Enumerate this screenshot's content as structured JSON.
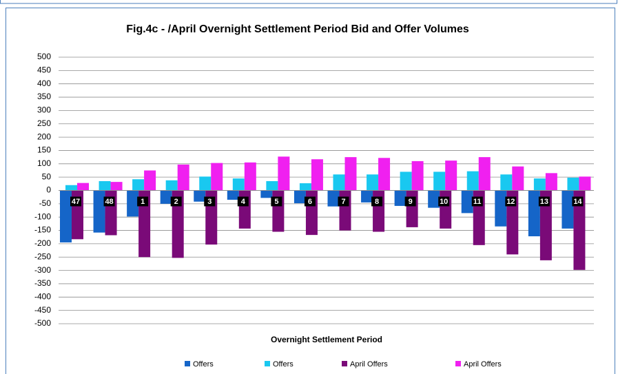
{
  "chart_data": {
    "type": "bar",
    "title": "Fig.4c - /April Overnight Settlement Period Bid and Offer Volumes",
    "x_label": "Overnight Settlement Period",
    "categories": [
      "47",
      "48",
      "1",
      "2",
      "3",
      "4",
      "5",
      "6",
      "7",
      "8",
      "9",
      "10",
      "11",
      "12",
      "13",
      "14"
    ],
    "series": [
      {
        "name": "Offers",
        "color": "#1565c8",
        "values": [
          -195,
          -158,
          -98,
          -50,
          -42,
          -35,
          -28,
          -48,
          -60,
          -45,
          -58,
          -65,
          -85,
          -135,
          -172,
          -143
        ]
      },
      {
        "name": "Offers",
        "color": "#19c8f0",
        "values": [
          20,
          35,
          42,
          38,
          52,
          45,
          35,
          27,
          60,
          60,
          70,
          70,
          72,
          60,
          45,
          48
        ]
      },
      {
        "name": "April Offers",
        "color": "#7a0a78",
        "values": [
          -183,
          -168,
          -250,
          -253,
          -203,
          -143,
          -155,
          -167,
          -150,
          -155,
          -138,
          -143,
          -205,
          -240,
          -262,
          -298
        ]
      },
      {
        "name": "April Offers",
        "color": "#f020f0",
        "values": [
          28,
          32,
          75,
          97,
          103,
          105,
          127,
          117,
          125,
          122,
          110,
          112,
          125,
          90,
          65,
          52
        ]
      }
    ],
    "ylim": [
      -500,
      500
    ],
    "yticks": [
      -500,
      -450,
      -400,
      -350,
      -300,
      -250,
      -200,
      -150,
      -100,
      -50,
      0,
      50,
      100,
      150,
      200,
      250,
      300,
      350,
      400,
      450,
      500
    ],
    "grid": true
  }
}
